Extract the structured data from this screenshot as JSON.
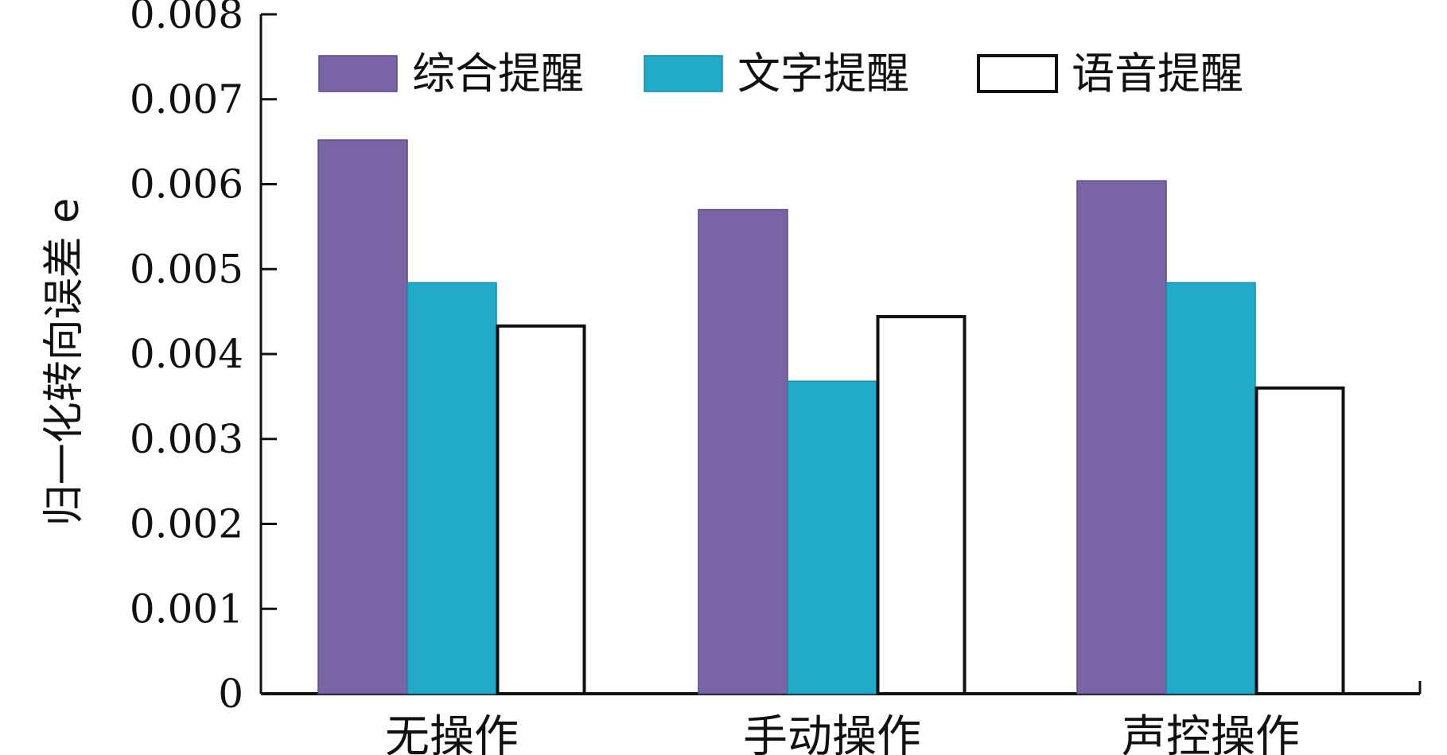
{
  "chart_data": {
    "type": "bar",
    "title": "",
    "xlabel": "",
    "ylabel": "归一化转向误差 e",
    "categories": [
      "无操作",
      "手动操作",
      "声控操作"
    ],
    "series": [
      {
        "name": "综合提醒",
        "values": [
          0.00652,
          0.0057,
          0.00604
        ],
        "color": "#7965a6",
        "stroke": "#5a4b86"
      },
      {
        "name": "文字提醒",
        "values": [
          0.00484,
          0.00368,
          0.00484
        ],
        "color": "#21abc8",
        "stroke": "#1a8aa3"
      },
      {
        "name": "语音提醒",
        "values": [
          0.00433,
          0.00444,
          0.0036
        ],
        "color": "#ffffff",
        "stroke": "#111111"
      }
    ],
    "ylim": [
      0,
      0.008
    ],
    "yticks": [
      "0",
      "0.001",
      "0.002",
      "0.003",
      "0.004",
      "0.005",
      "0.006",
      "0.007",
      "0.008"
    ],
    "grid": false,
    "legend_position": "top"
  }
}
